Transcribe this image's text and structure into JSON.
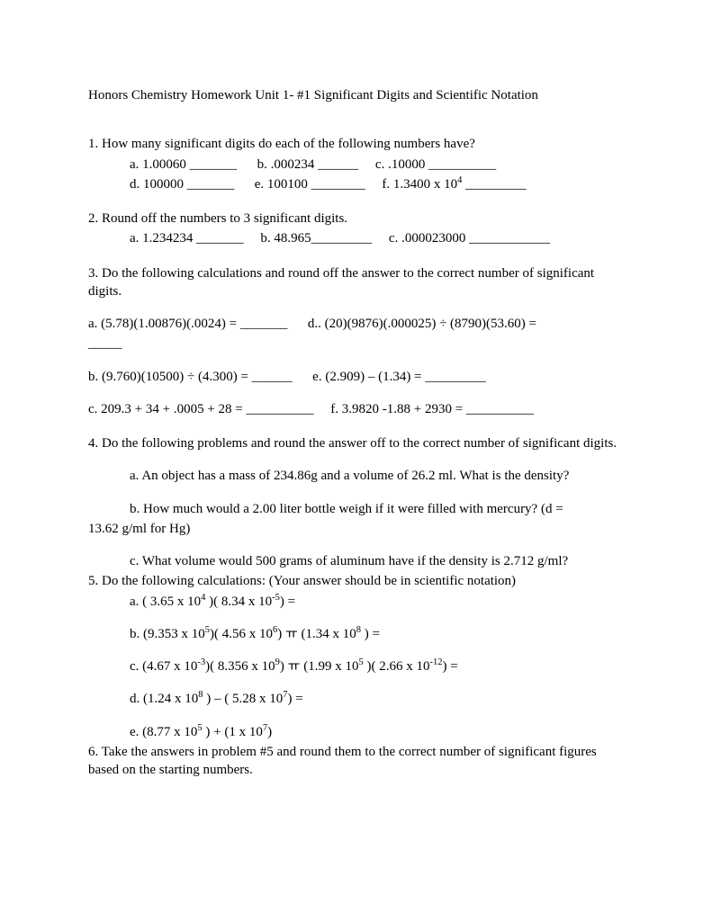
{
  "colors": {
    "text": "#000000",
    "background": "#ffffff"
  },
  "font": {
    "family": "Times New Roman",
    "size_pt": 12,
    "title_size_pt": 12
  },
  "title": "Honors Chemistry Homework   Unit 1- #1   Significant Digits and Scientific Notation",
  "q1": {
    "prompt": "1.  How many significant digits do each of the following numbers have?",
    "row1_a": "a.  1.00060 _______",
    "row1_b": "b.  .000234 ______",
    "row1_c": "c.  .10000 __________",
    "row2_d": "d.  100000 _______",
    "row2_e": "e.  100100 ________",
    "row2_f_pre": "f.  1.3400 x 10",
    "row2_f_sup": "4",
    "row2_f_post": " _________"
  },
  "q2": {
    "prompt": "2.  Round off the numbers to 3 significant digits.",
    "row_a": "a. 1.234234 _______",
    "row_b": "b. 48.965_________",
    "row_c": "c.  .000023000 ____________"
  },
  "q3": {
    "prompt": "3.  Do the following calculations and round off the answer to the correct number of significant digits.",
    "a": "a.   (5.78)(1.00876)(.0024)  =  _______",
    "d": "d..  (20)(9876)(.000025) ÷ (8790)(53.60) =",
    "a_tail": "_____",
    "b": "b.  (9.760)(10500) ÷ (4.300)  = ______",
    "e": "e.  (2.909) – (1.34) = _________",
    "c": "c.   209.3  +  34  +  .0005  + 28 = __________",
    "f": "f. 3.9820 -1.88 + 2930 = __________"
  },
  "q4": {
    "prompt": "4.  Do the following problems and round the answer off to the correct number of significant digits.",
    "a": "a. An object has a mass of 234.86g and a volume of 26.2 ml.  What is the density?",
    "b_line1": "b.  How much would a 2.00 liter bottle weigh if it were filled with mercury?  (d =",
    "b_line2": "13.62 g/ml for Hg)",
    "c": "c.  What volume would 500 grams of aluminum have if the density is  2.712 g/ml?"
  },
  "q5": {
    "prompt": "5. Do the following calculations: (Your answer should be in scientific notation)",
    "a_pre": "a. ( 3.65 x 10",
    "a_sup1": "4",
    "a_mid1": " )( 8.34 x 10",
    "a_sup2": "-5",
    "a_post": ") =",
    "b_pre": "b. (9.353 x 10",
    "b_sup1": "5",
    "b_mid1": ")( 4.56 x 10",
    "b_sup2": "6",
    "b_mid2": ") ￗ (1.34 x 10",
    "b_sup3": "8",
    "b_post": " ) =",
    "c_pre": "c. (4.67 x 10",
    "c_sup1": "-3",
    "c_mid1": ")( 8.356 x 10",
    "c_sup2": "9",
    "c_mid2": ") ￗ (1.99 x 10",
    "c_sup3": "5",
    "c_mid3": " )( 2.66 x 10",
    "c_sup4": "-12",
    "c_post": ") =",
    "d_pre": "d. (1.24 x 10",
    "d_sup1": "8",
    "d_mid1": " ) – ( 5.28 x 10",
    "d_sup2": "7",
    "d_post": ") =",
    "e_pre": "e. (8.77 x 10",
    "e_sup1": "5",
    "e_mid1": " ) + (1 x 10",
    "e_sup2": "7",
    "e_post": ")"
  },
  "q6": "6.  Take the answers in problem #5 and round them to the correct number of significant figures based on the starting numbers."
}
